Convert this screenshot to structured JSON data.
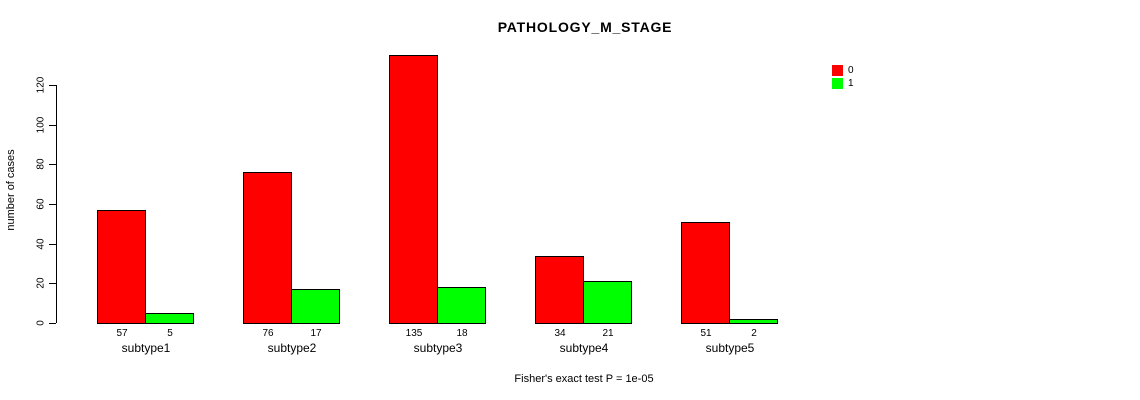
{
  "chart_data": {
    "type": "bar",
    "title": "PATHOLOGY_M_STAGE",
    "ylabel": "number of cases",
    "xlabel": "",
    "categories": [
      "subtype1",
      "subtype2",
      "subtype3",
      "subtype4",
      "subtype5"
    ],
    "series": [
      {
        "name": "0",
        "color": "#ff0000",
        "values": [
          57,
          76,
          135,
          34,
          51
        ]
      },
      {
        "name": "1",
        "color": "#00ff00",
        "values": [
          5,
          17,
          18,
          21,
          2
        ]
      }
    ],
    "yticks": [
      0,
      20,
      40,
      60,
      80,
      100,
      120
    ],
    "ylim": [
      0,
      135
    ],
    "grid": false,
    "legend_position": "top-right",
    "bar_labels_shown": true,
    "annotation": "Fisher's exact test P = 1e-05"
  }
}
